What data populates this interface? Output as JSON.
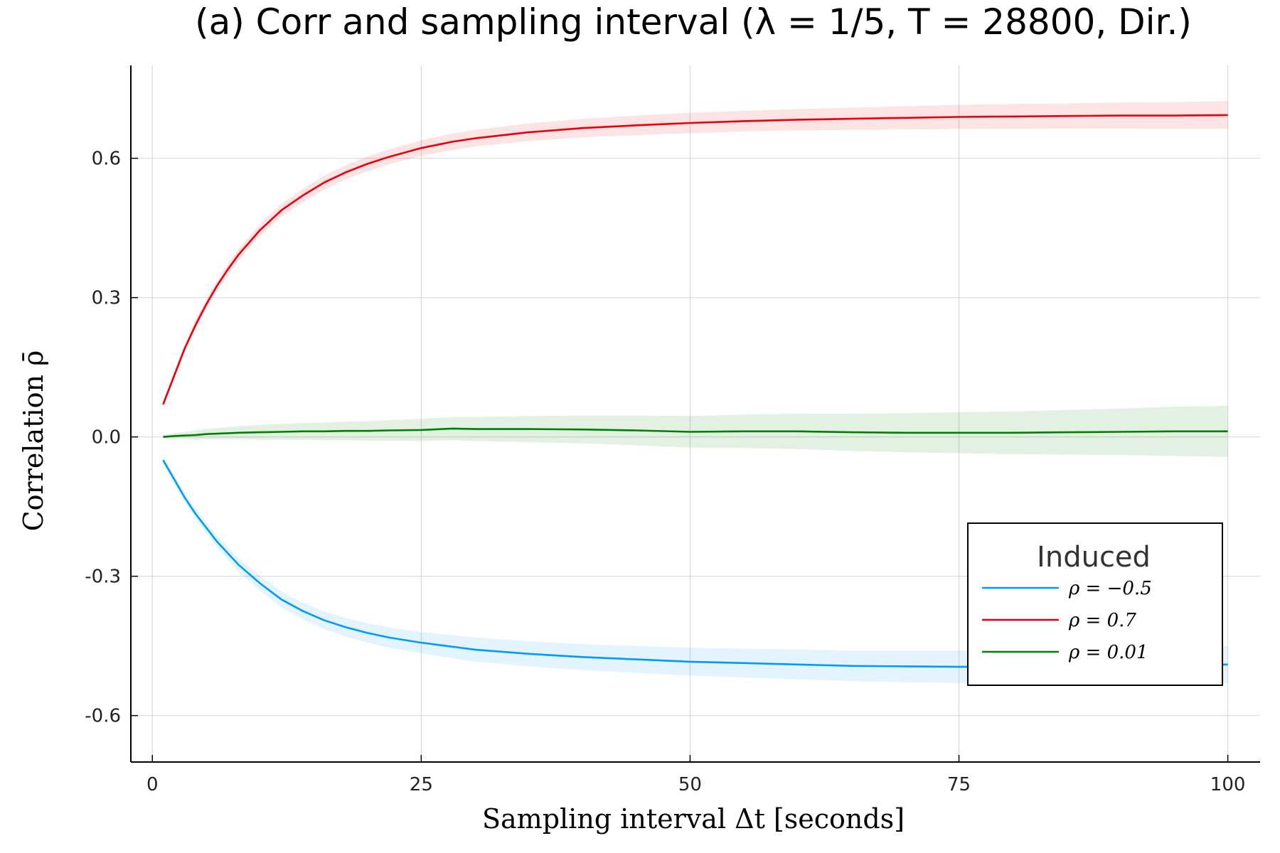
{
  "chart_data": {
    "type": "line",
    "title": "(a) Corr and sampling interval (λ = 1/5, T = 28800, Dir.)",
    "xlabel": "Sampling interval Δt [seconds]",
    "ylabel": "Correlation ρ̄",
    "xlim": [
      -2,
      103
    ],
    "ylim": [
      -0.7,
      0.8
    ],
    "xticks": [
      0,
      25,
      50,
      75,
      100
    ],
    "xtick_labels": [
      "0",
      "25",
      "50",
      "75",
      "100"
    ],
    "yticks": [
      -0.6,
      -0.3,
      0.0,
      0.3,
      0.6
    ],
    "ytick_labels": [
      "-0.6",
      "-0.3",
      "0.0",
      "0.3",
      "0.6"
    ],
    "grid": true,
    "legend": {
      "title": "Induced",
      "position": "bottom-right"
    },
    "x": [
      1,
      2,
      3,
      4,
      5,
      6,
      7,
      8,
      10,
      12,
      14,
      16,
      18,
      20,
      22,
      25,
      28,
      30,
      35,
      40,
      45,
      50,
      55,
      60,
      65,
      70,
      75,
      80,
      85,
      90,
      95,
      100
    ],
    "series": [
      {
        "name": "ρ = −0.5",
        "color": "#009af9",
        "values": [
          -0.05,
          -0.09,
          -0.13,
          -0.165,
          -0.195,
          -0.225,
          -0.25,
          -0.275,
          -0.315,
          -0.35,
          -0.375,
          -0.395,
          -0.41,
          -0.422,
          -0.432,
          -0.443,
          -0.452,
          -0.458,
          -0.467,
          -0.474,
          -0.479,
          -0.484,
          -0.487,
          -0.49,
          -0.493,
          -0.494,
          -0.495,
          -0.495,
          -0.494,
          -0.493,
          -0.492,
          -0.49
        ],
        "band": [
          0.008,
          0.009,
          0.01,
          0.011,
          0.012,
          0.013,
          0.014,
          0.015,
          0.016,
          0.017,
          0.018,
          0.019,
          0.02,
          0.021,
          0.022,
          0.023,
          0.025,
          0.026,
          0.027,
          0.028,
          0.029,
          0.03,
          0.031,
          0.032,
          0.033,
          0.034,
          0.035,
          0.036,
          0.037,
          0.038,
          0.039,
          0.04
        ]
      },
      {
        "name": "ρ = 0.7",
        "color": "#e8000b",
        "values": [
          0.07,
          0.13,
          0.19,
          0.24,
          0.285,
          0.325,
          0.36,
          0.392,
          0.445,
          0.488,
          0.52,
          0.548,
          0.57,
          0.588,
          0.603,
          0.622,
          0.636,
          0.643,
          0.656,
          0.665,
          0.671,
          0.676,
          0.68,
          0.683,
          0.685,
          0.687,
          0.689,
          0.69,
          0.691,
          0.692,
          0.692,
          0.693
        ],
        "band": [
          0.006,
          0.007,
          0.008,
          0.009,
          0.01,
          0.011,
          0.011,
          0.012,
          0.013,
          0.014,
          0.014,
          0.015,
          0.015,
          0.016,
          0.016,
          0.017,
          0.018,
          0.018,
          0.019,
          0.02,
          0.021,
          0.022,
          0.022,
          0.023,
          0.024,
          0.025,
          0.026,
          0.027,
          0.027,
          0.028,
          0.029,
          0.03
        ]
      },
      {
        "name": "ρ = 0.01",
        "color": "#008000",
        "values": [
          0.0,
          0.002,
          0.003,
          0.004,
          0.006,
          0.007,
          0.008,
          0.009,
          0.01,
          0.011,
          0.012,
          0.012,
          0.013,
          0.013,
          0.014,
          0.015,
          0.018,
          0.017,
          0.017,
          0.016,
          0.014,
          0.011,
          0.012,
          0.012,
          0.01,
          0.009,
          0.009,
          0.009,
          0.01,
          0.011,
          0.012,
          0.012
        ],
        "band": [
          0.004,
          0.006,
          0.008,
          0.01,
          0.011,
          0.012,
          0.013,
          0.014,
          0.016,
          0.017,
          0.018,
          0.019,
          0.02,
          0.021,
          0.022,
          0.024,
          0.025,
          0.026,
          0.028,
          0.03,
          0.032,
          0.034,
          0.036,
          0.038,
          0.04,
          0.042,
          0.044,
          0.046,
          0.048,
          0.05,
          0.053,
          0.055
        ]
      }
    ]
  }
}
